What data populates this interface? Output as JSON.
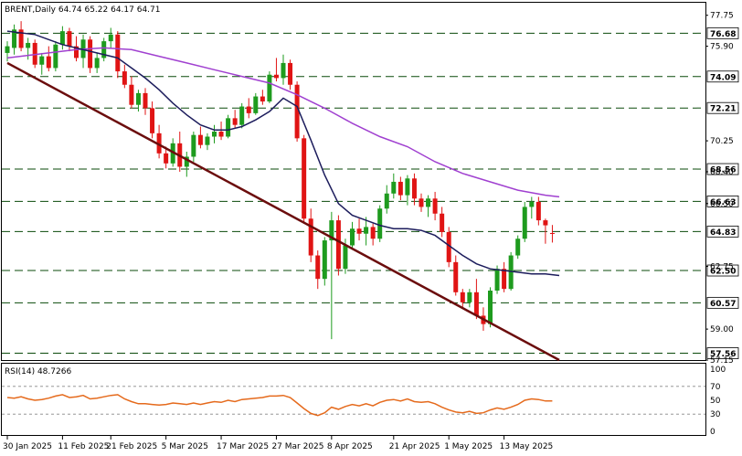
{
  "chart_data": [
    {
      "type": "candlestick",
      "title": "BRENT,Daily  64.74 65.22 64.17 64.71",
      "ylim": [
        57.15,
        78.5
      ],
      "y_ticks": [
        "77.75",
        "75.90",
        "70.25",
        "68.40",
        "66.50",
        "62.75",
        "59.00",
        "57.15"
      ],
      "x_tick_labels": [
        "30 Jan 2025",
        "11 Feb 2025",
        "21 Feb 2025",
        "5 Mar 2025",
        "17 Mar 2025",
        "27 Mar 2025",
        "8 Apr 2025",
        "21 Apr 2025",
        "1 May 2025",
        "13 May 2025"
      ],
      "x_tick_index": [
        0,
        8,
        15,
        23,
        31,
        39,
        47,
        56,
        64,
        72
      ],
      "levels": [
        {
          "value": 76.68,
          "label": "76.68"
        },
        {
          "value": 74.09,
          "label": "74.09"
        },
        {
          "value": 72.21,
          "label": "72.21"
        },
        {
          "value": 68.56,
          "label": "68.56"
        },
        {
          "value": 66.63,
          "label": "66.63"
        },
        {
          "value": 64.83,
          "label": "64.83"
        },
        {
          "value": 62.5,
          "label": "62.50"
        },
        {
          "value": 60.57,
          "label": "60.57"
        },
        {
          "value": 57.56,
          "label": "57.56"
        }
      ],
      "candles": [
        [
          75.5,
          76.2,
          75.0,
          75.9
        ],
        [
          75.8,
          77.2,
          75.4,
          76.9
        ],
        [
          76.9,
          77.4,
          75.6,
          75.8
        ],
        [
          75.8,
          76.4,
          75.1,
          76.1
        ],
        [
          76.1,
          76.3,
          74.6,
          74.8
        ],
        [
          74.8,
          75.5,
          74.2,
          75.3
        ],
        [
          75.3,
          75.9,
          74.4,
          74.6
        ],
        [
          74.6,
          76.2,
          74.4,
          76.0
        ],
        [
          76.0,
          77.1,
          75.7,
          76.8
        ],
        [
          76.8,
          77.0,
          75.6,
          75.9
        ],
        [
          75.9,
          76.5,
          75.0,
          75.2
        ],
        [
          75.2,
          76.6,
          74.6,
          76.3
        ],
        [
          76.3,
          76.5,
          74.3,
          74.6
        ],
        [
          74.6,
          75.5,
          74.3,
          75.2
        ],
        [
          75.2,
          76.4,
          75.0,
          76.2
        ],
        [
          76.2,
          77.0,
          75.8,
          76.6
        ],
        [
          76.6,
          76.8,
          74.0,
          74.4
        ],
        [
          74.4,
          74.8,
          73.4,
          73.6
        ],
        [
          73.6,
          74.1,
          72.2,
          72.4
        ],
        [
          72.4,
          73.3,
          72.0,
          73.1
        ],
        [
          73.1,
          73.4,
          71.8,
          72.2
        ],
        [
          72.2,
          72.6,
          70.4,
          70.7
        ],
        [
          70.7,
          71.2,
          69.2,
          69.5
        ],
        [
          69.5,
          69.9,
          68.6,
          68.9
        ],
        [
          68.9,
          70.4,
          68.7,
          70.1
        ],
        [
          70.1,
          70.8,
          68.4,
          68.7
        ],
        [
          68.7,
          69.6,
          68.1,
          69.3
        ],
        [
          69.3,
          70.8,
          69.0,
          70.6
        ],
        [
          70.6,
          71.1,
          69.8,
          70.0
        ],
        [
          70.0,
          70.7,
          69.7,
          70.5
        ],
        [
          70.5,
          71.2,
          70.1,
          70.8
        ],
        [
          70.8,
          71.4,
          70.3,
          70.5
        ],
        [
          70.5,
          71.8,
          70.4,
          71.6
        ],
        [
          71.6,
          72.1,
          71.0,
          71.2
        ],
        [
          71.2,
          72.5,
          71.0,
          72.3
        ],
        [
          72.3,
          72.8,
          71.6,
          71.9
        ],
        [
          71.9,
          73.1,
          71.8,
          72.9
        ],
        [
          72.9,
          73.3,
          72.4,
          72.6
        ],
        [
          72.6,
          74.4,
          72.5,
          74.2
        ],
        [
          74.2,
          75.2,
          73.8,
          74.0
        ],
        [
          74.0,
          75.4,
          73.6,
          74.9
        ],
        [
          74.9,
          75.1,
          73.3,
          73.6
        ],
        [
          73.6,
          73.8,
          70.2,
          70.4
        ],
        [
          70.4,
          70.6,
          65.3,
          65.6
        ],
        [
          65.6,
          66.2,
          63.0,
          63.4
        ],
        [
          63.4,
          63.7,
          61.4,
          62.0
        ],
        [
          62.0,
          64.5,
          61.6,
          64.3
        ],
        [
          64.3,
          66.0,
          58.4,
          65.5
        ],
        [
          65.5,
          65.8,
          62.2,
          62.6
        ],
        [
          62.6,
          64.4,
          62.3,
          64.0
        ],
        [
          64.0,
          65.4,
          63.8,
          65.0
        ],
        [
          65.0,
          65.6,
          64.3,
          64.7
        ],
        [
          64.7,
          65.7,
          64.0,
          65.1
        ],
        [
          65.1,
          65.3,
          64.0,
          64.4
        ],
        [
          64.4,
          66.4,
          64.2,
          66.2
        ],
        [
          66.2,
          67.6,
          65.9,
          67.1
        ],
        [
          67.1,
          68.3,
          66.8,
          67.8
        ],
        [
          67.8,
          68.1,
          66.7,
          67.0
        ],
        [
          67.0,
          68.2,
          66.4,
          68.0
        ],
        [
          68.0,
          68.3,
          66.4,
          66.8
        ],
        [
          66.8,
          67.1,
          66.0,
          66.3
        ],
        [
          66.3,
          67.0,
          65.7,
          66.8
        ],
        [
          66.8,
          67.2,
          65.5,
          65.9
        ],
        [
          65.9,
          66.3,
          64.5,
          64.8
        ],
        [
          64.8,
          65.1,
          62.7,
          63.0
        ],
        [
          63.0,
          63.4,
          61.0,
          61.2
        ],
        [
          61.2,
          61.4,
          60.2,
          60.6
        ],
        [
          60.6,
          61.4,
          60.3,
          61.2
        ],
        [
          61.2,
          62.0,
          59.6,
          59.8
        ],
        [
          59.8,
          60.3,
          58.9,
          59.3
        ],
        [
          59.3,
          61.5,
          59.1,
          61.3
        ],
        [
          61.3,
          62.8,
          61.1,
          62.6
        ],
        [
          62.6,
          63.0,
          61.2,
          61.4
        ],
        [
          61.4,
          63.6,
          61.3,
          63.4
        ],
        [
          63.4,
          64.6,
          63.2,
          64.4
        ],
        [
          64.4,
          66.6,
          64.2,
          66.3
        ],
        [
          66.3,
          66.9,
          65.6,
          66.6
        ],
        [
          66.6,
          66.9,
          65.2,
          65.5
        ],
        [
          65.5,
          65.6,
          64.1,
          65.2
        ],
        [
          64.74,
          65.22,
          64.17,
          64.71
        ]
      ],
      "ma_short": [
        [
          0,
          76.8
        ],
        [
          4,
          76.6
        ],
        [
          8,
          76.0
        ],
        [
          12,
          75.6
        ],
        [
          16,
          75.2
        ],
        [
          18,
          74.6
        ],
        [
          20,
          74.0
        ],
        [
          22,
          73.3
        ],
        [
          24,
          72.5
        ],
        [
          26,
          71.8
        ],
        [
          28,
          71.2
        ],
        [
          30,
          70.9
        ],
        [
          32,
          70.9
        ],
        [
          34,
          71.1
        ],
        [
          36,
          71.5
        ],
        [
          38,
          72.0
        ],
        [
          40,
          72.8
        ],
        [
          42,
          72.3
        ],
        [
          44,
          70.3
        ],
        [
          46,
          68.2
        ],
        [
          48,
          66.5
        ],
        [
          50,
          65.8
        ],
        [
          52,
          65.5
        ],
        [
          54,
          65.2
        ],
        [
          56,
          65.0
        ],
        [
          58,
          65.0
        ],
        [
          60,
          64.9
        ],
        [
          62,
          64.6
        ],
        [
          64,
          64.0
        ],
        [
          66,
          63.4
        ],
        [
          68,
          62.9
        ],
        [
          70,
          62.6
        ],
        [
          72,
          62.5
        ],
        [
          74,
          62.4
        ],
        [
          76,
          62.3
        ],
        [
          78,
          62.3
        ],
        [
          80,
          62.2
        ]
      ],
      "ma_long": [
        [
          0,
          75.2
        ],
        [
          6,
          75.5
        ],
        [
          10,
          75.7
        ],
        [
          14,
          75.8
        ],
        [
          18,
          75.7
        ],
        [
          22,
          75.3
        ],
        [
          26,
          74.9
        ],
        [
          30,
          74.5
        ],
        [
          34,
          74.1
        ],
        [
          38,
          73.7
        ],
        [
          42,
          73.0
        ],
        [
          46,
          72.2
        ],
        [
          50,
          71.3
        ],
        [
          54,
          70.5
        ],
        [
          58,
          69.9
        ],
        [
          62,
          69.0
        ],
        [
          66,
          68.3
        ],
        [
          70,
          67.8
        ],
        [
          74,
          67.3
        ],
        [
          78,
          67.0
        ],
        [
          80,
          66.9
        ]
      ],
      "trendline": {
        "from": [
          0,
          74.9
        ],
        "to": [
          80,
          57.15
        ]
      }
    },
    {
      "type": "line",
      "title": "RSI(14) 48.7266",
      "ylim": [
        0,
        100
      ],
      "y_ticks": [
        "100",
        "70",
        "50",
        "30",
        "0"
      ],
      "levels": [
        70,
        30
      ],
      "values": [
        54,
        53,
        55,
        52,
        50,
        51,
        53,
        56,
        58,
        54,
        55,
        57,
        52,
        53,
        55,
        57,
        58,
        52,
        48,
        45,
        45,
        44,
        43,
        44,
        46,
        45,
        44,
        46,
        44,
        46,
        48,
        47,
        50,
        48,
        51,
        52,
        53,
        54,
        56,
        56,
        57,
        54,
        46,
        38,
        31,
        28,
        32,
        40,
        37,
        41,
        44,
        42,
        45,
        42,
        47,
        50,
        51,
        49,
        52,
        48,
        47,
        48,
        45,
        40,
        36,
        33,
        32,
        34,
        31,
        32,
        36,
        39,
        37,
        40,
        44,
        50,
        52,
        51,
        49,
        49
      ]
    }
  ]
}
